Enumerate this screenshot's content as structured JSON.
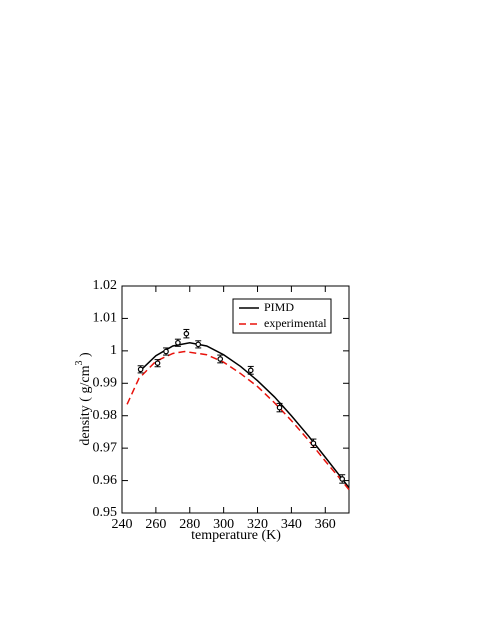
{
  "chart_data": {
    "type": "line",
    "xlabel": "temperature (K)",
    "ylabel": {
      "text": "density ( g/cm",
      "sup": "3",
      "end": " )"
    },
    "xlim": [
      240,
      374
    ],
    "xticks": [
      240,
      260,
      280,
      300,
      320,
      340,
      360
    ],
    "ylim": [
      0.95,
      1.02
    ],
    "yticks": [
      0.95,
      0.96,
      0.97,
      0.98,
      0.99,
      1,
      1.01,
      1.02
    ],
    "legend": "upper right",
    "series": [
      {
        "name": "PIMD",
        "color": "#000000",
        "dash": false,
        "x": [
          250,
          260,
          270,
          280,
          290,
          300,
          310,
          320,
          330,
          340,
          350,
          360,
          370,
          374
        ],
        "values": [
          0.9935,
          0.9985,
          1.0015,
          1.0025,
          1.0015,
          0.9988,
          0.9952,
          0.9908,
          0.9858,
          0.98,
          0.9738,
          0.9672,
          0.9605,
          0.9578
        ]
      },
      {
        "name": "experimental",
        "color": "#e8120c",
        "dash": true,
        "x": [
          243,
          250,
          260,
          270,
          277,
          290,
          300,
          310,
          320,
          330,
          340,
          350,
          360,
          370,
          374
        ],
        "values": [
          0.9835,
          0.9915,
          0.9968,
          0.9992,
          0.9998,
          0.9988,
          0.9965,
          0.993,
          0.989,
          0.984,
          0.9785,
          0.9725,
          0.966,
          0.9598,
          0.9572
        ]
      }
    ],
    "points": {
      "color": "#000000",
      "x": [
        251,
        261,
        266,
        273,
        278,
        285,
        298,
        316,
        333,
        353,
        370
      ],
      "values": [
        0.9943,
        0.9962,
        0.9998,
        1.0025,
        1.0053,
        1.002,
        0.9975,
        0.994,
        0.9825,
        0.9715,
        0.9605
      ],
      "errors": [
        0.0011,
        0.0011,
        0.0011,
        0.0011,
        0.0013,
        0.0011,
        0.0012,
        0.0012,
        0.0013,
        0.0013,
        0.0013
      ]
    }
  }
}
